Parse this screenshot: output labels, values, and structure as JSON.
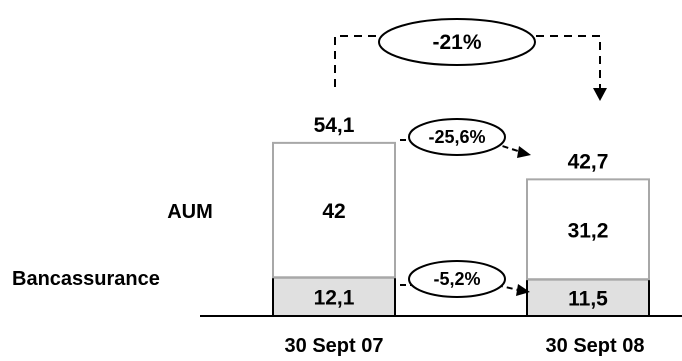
{
  "chart_data": {
    "type": "bar",
    "stacked": true,
    "categories": [
      "30 Sept 07",
      "30 Sept 08"
    ],
    "series": [
      {
        "name": "Bancassurance",
        "values": [
          12.1,
          11.5
        ],
        "value_labels": [
          "12,1",
          "11,5"
        ],
        "color": "#e0e0e0"
      },
      {
        "name": "AUM",
        "values": [
          42,
          31.2
        ],
        "value_labels": [
          "42",
          "31,2"
        ],
        "color": "#ffffff"
      }
    ],
    "totals": [
      54.1,
      42.7
    ],
    "total_labels": [
      "54,1",
      "42,7"
    ],
    "annotations": {
      "total_change": "-21%",
      "aum_change": "-25,6%",
      "bancassurance_change": "-5,2%"
    },
    "colors": {
      "aum_border": "#a8a8a8",
      "bancassurance_border": "#000000"
    }
  }
}
